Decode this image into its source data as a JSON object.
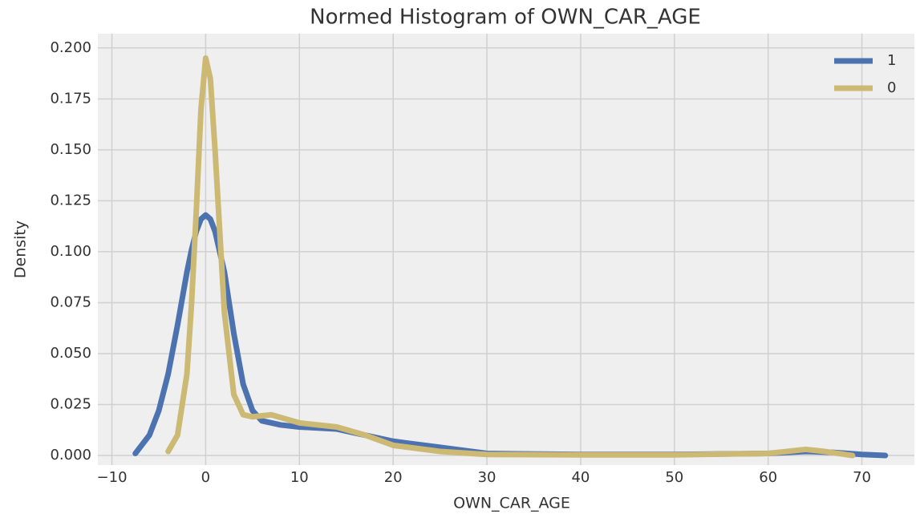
{
  "chart_data": {
    "type": "line",
    "title": "Normed Histogram of OWN_CAR_AGE",
    "xlabel": "OWN_CAR_AGE",
    "ylabel": "Density",
    "xlim": [
      -11.5,
      75.6
    ],
    "ylim": [
      -0.0047,
      0.207
    ],
    "xticks": [
      {
        "value": -10,
        "label": "−10"
      },
      0,
      10,
      20,
      30,
      40,
      50,
      60,
      70
    ],
    "yticks": [
      {
        "value": 0,
        "label": "0.000"
      },
      {
        "value": 0.025,
        "label": "0.025"
      },
      {
        "value": 0.05,
        "label": "0.050"
      },
      {
        "value": 0.075,
        "label": "0.075"
      },
      {
        "value": 0.1,
        "label": "0.100"
      },
      {
        "value": 0.125,
        "label": "0.125"
      },
      {
        "value": 0.15,
        "label": "0.150"
      },
      {
        "value": 0.175,
        "label": "0.175"
      },
      {
        "value": 0.2,
        "label": "0.200"
      }
    ],
    "grid": true,
    "legend": "upper right",
    "series": [
      {
        "name": "1",
        "color": "#4c72b0",
        "x": [
          -7.5,
          -6,
          -5,
          -4,
          -3,
          -2,
          -1.5,
          -1,
          -0.5,
          0,
          0.5,
          1,
          1.5,
          2,
          3,
          4,
          5,
          6,
          8,
          10,
          14,
          17,
          20,
          25,
          30,
          40,
          50,
          60,
          64,
          67,
          70,
          72.5
        ],
        "values": [
          0.001,
          0.01,
          0.022,
          0.04,
          0.064,
          0.09,
          0.101,
          0.11,
          0.116,
          0.118,
          0.116,
          0.11,
          0.1,
          0.09,
          0.06,
          0.035,
          0.022,
          0.017,
          0.015,
          0.014,
          0.013,
          0.01,
          0.007,
          0.004,
          0.001,
          0.0005,
          0.0005,
          0.001,
          0.002,
          0.0015,
          0.0005,
          0
        ]
      },
      {
        "name": "0",
        "color": "#ccb974",
        "x": [
          -4,
          -3,
          -2,
          -1.5,
          -1,
          -0.5,
          0,
          0.5,
          1,
          1.5,
          2,
          3,
          4,
          5,
          7,
          10,
          14,
          17,
          20,
          25,
          30,
          40,
          50,
          60,
          64,
          66,
          69
        ],
        "values": [
          0.002,
          0.01,
          0.04,
          0.075,
          0.12,
          0.17,
          0.195,
          0.185,
          0.15,
          0.11,
          0.07,
          0.03,
          0.02,
          0.019,
          0.02,
          0.016,
          0.014,
          0.01,
          0.005,
          0.002,
          0.0005,
          0.0003,
          0.0003,
          0.001,
          0.003,
          0.002,
          0
        ]
      }
    ]
  }
}
